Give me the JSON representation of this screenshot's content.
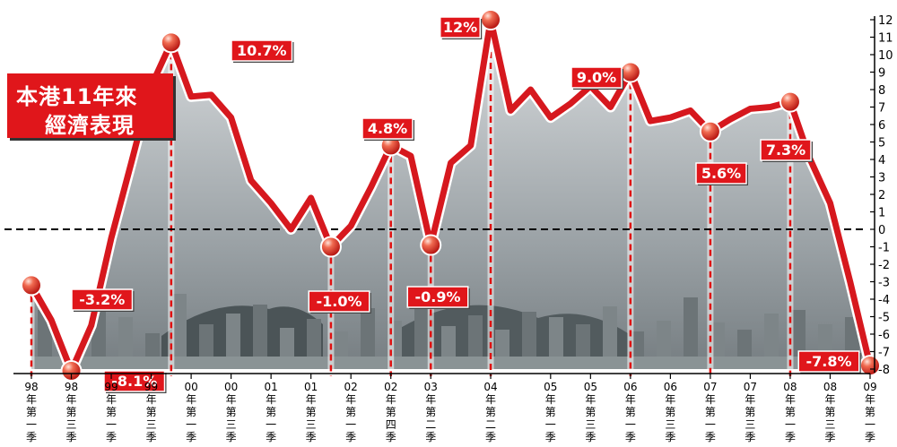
{
  "chart_data": {
    "type": "line",
    "title_line1": "本港11年來",
    "title_line2": "經濟表現",
    "ylim": [
      -8,
      12
    ],
    "y_ticks": [
      "12",
      "11",
      "10",
      "9",
      "8",
      "7",
      "6",
      "5",
      "4",
      "3",
      "2",
      "1",
      "0",
      "-1",
      "-2",
      "-3",
      "-4",
      "-5",
      "-6",
      "-7",
      "-8"
    ],
    "x_labels": [
      [
        "98",
        "年",
        "第",
        "一",
        "季"
      ],
      [
        "98",
        "年",
        "第",
        "三",
        "季"
      ],
      [
        "99",
        "年",
        "第",
        "一",
        "季"
      ],
      [
        "99",
        "年",
        "第",
        "三",
        "季"
      ],
      [
        "00",
        "年",
        "第",
        "一",
        "季"
      ],
      [
        "00",
        "年",
        "第",
        "三",
        "季"
      ],
      [
        "01",
        "年",
        "第",
        "一",
        "季"
      ],
      [
        "01",
        "年",
        "第",
        "三",
        "季"
      ],
      [
        "02",
        "年",
        "第",
        "一",
        "季"
      ],
      [
        "02",
        "年",
        "第",
        "四",
        "季"
      ],
      [
        "03",
        "年",
        "第",
        "二",
        "季"
      ],
      [
        "04",
        "年",
        "第",
        "二",
        "季"
      ],
      [
        "05",
        "年",
        "第",
        "一",
        "季"
      ],
      [
        "05",
        "年",
        "第",
        "三",
        "季"
      ],
      [
        "06",
        "年",
        "第",
        "一",
        "季"
      ],
      [
        "06",
        "年",
        "第",
        "三",
        "季"
      ],
      [
        "07",
        "年",
        "第",
        "一",
        "季"
      ],
      [
        "07",
        "年",
        "第",
        "三",
        "季"
      ],
      [
        "08",
        "年",
        "第",
        "一",
        "季"
      ],
      [
        "08",
        "年",
        "第",
        "三",
        "季"
      ],
      [
        "09",
        "年",
        "第",
        "一",
        "季"
      ]
    ],
    "series": [
      {
        "values": [
          -3.2,
          -5.2,
          -8.1,
          -5.5,
          -0.5,
          3.8,
          8.2,
          10.7,
          7.6,
          7.7,
          6.4,
          2.8,
          1.5,
          0,
          1.8,
          -1.0,
          0.2,
          2.4,
          4.8,
          4.2,
          -0.9,
          3.8,
          4.8,
          12,
          6.8,
          8.0,
          6.4,
          7.2,
          8.2,
          7.0,
          9.0,
          6.2,
          6.4,
          6.8,
          5.6,
          6.3,
          6.9,
          7.0,
          7.3,
          4.0,
          1.5,
          -3.0,
          -7.8
        ]
      }
    ],
    "highlights": [
      {
        "label": "-3.2%",
        "value": -3.2
      },
      {
        "label": "-8.1%",
        "value": -8.1
      },
      {
        "label": "10.7%",
        "value": 10.7
      },
      {
        "label": "-1.0%",
        "value": -1.0
      },
      {
        "label": "4.8%",
        "value": 4.8
      },
      {
        "label": "-0.9%",
        "value": -0.9
      },
      {
        "label": "12%",
        "value": 12
      },
      {
        "label": "9.0%",
        "value": 9.0
      },
      {
        "label": "5.6%",
        "value": 5.6
      },
      {
        "label": "7.3%",
        "value": 7.3
      },
      {
        "label": "-7.8%",
        "value": -7.8
      }
    ],
    "colors": {
      "line": "#d6181e",
      "label_bg": "#e0161b",
      "zero_line": "#000000",
      "guide": "#e01010",
      "sky_top": "#cfd3d6",
      "sky_bottom": "#6d7478",
      "water": "#8a9395"
    }
  }
}
